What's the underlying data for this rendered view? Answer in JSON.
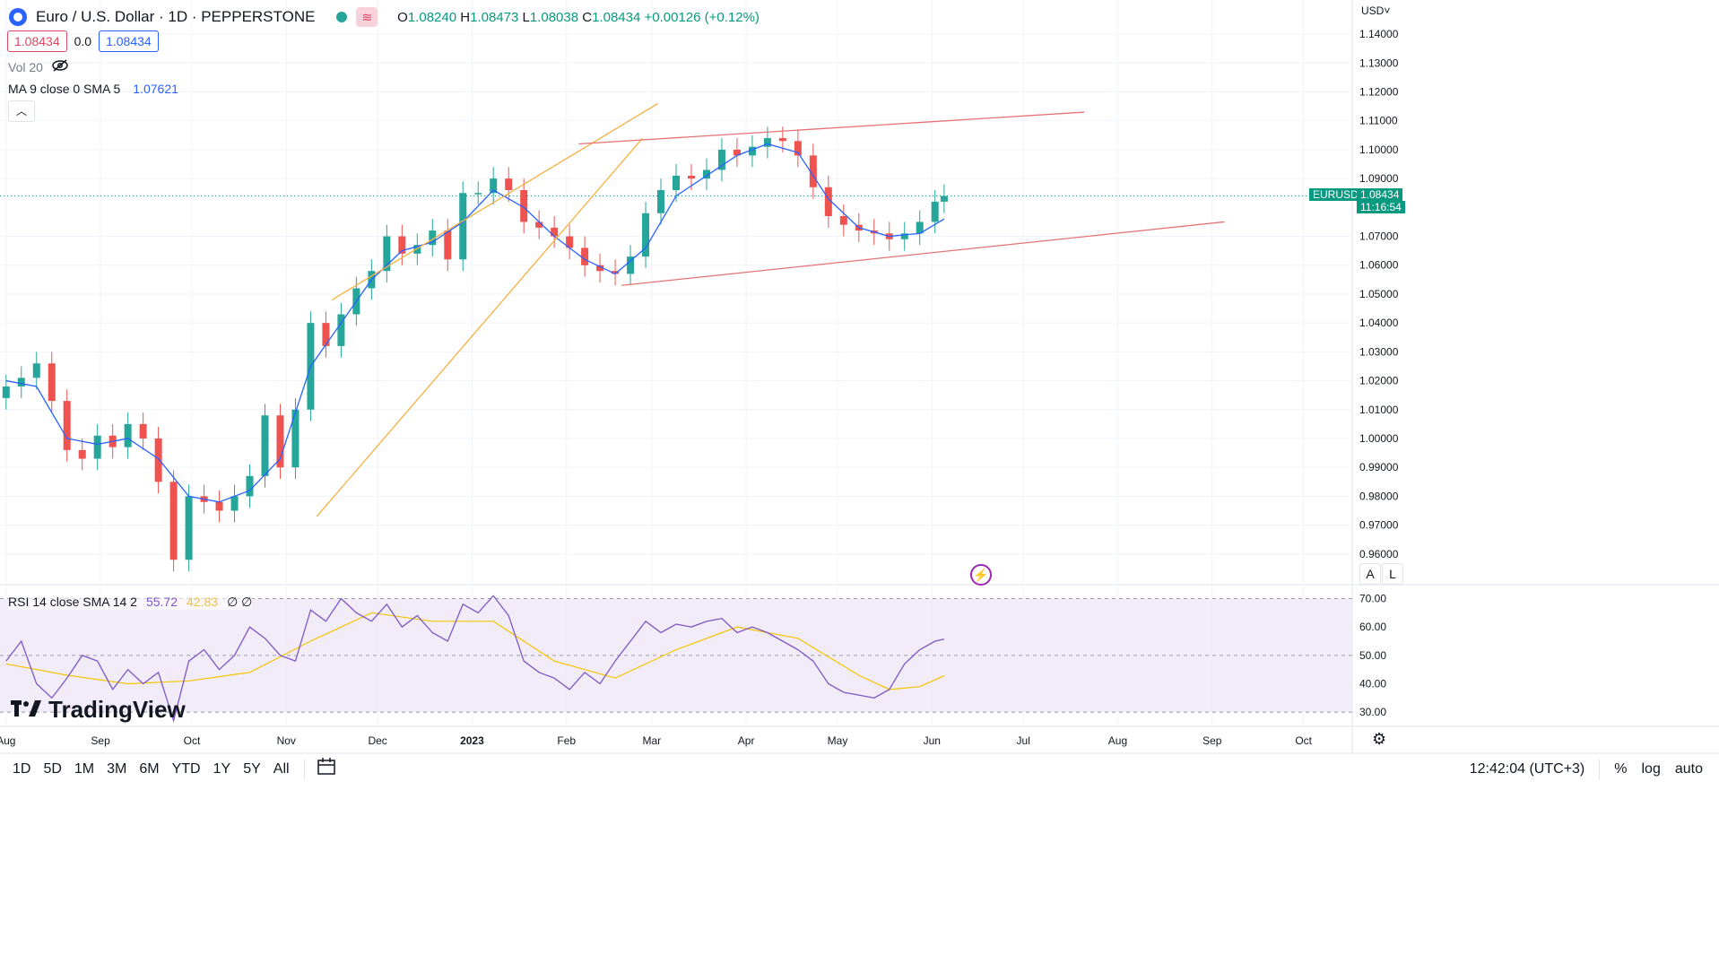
{
  "header": {
    "symbol_title": "Euro / U.S. Dollar · 1D · PEPPERSTONE",
    "ohlc": {
      "o_label": "O",
      "o": "1.08240",
      "h_label": "H",
      "h": "1.08473",
      "l_label": "L",
      "l": "1.08038",
      "c_label": "C",
      "c": "1.08434",
      "change": "+0.00126 (+0.12%)"
    },
    "sell_price": "1.08434",
    "spread": "0.0",
    "buy_price": "1.08434",
    "volume_label": "Vol 20",
    "ma_label": "MA 9 close 0 SMA 5",
    "ma_value": "1.07621",
    "currency_menu": "USD˅"
  },
  "price_tag": {
    "symbol": "EURUSD",
    "price": "1.08434",
    "countdown": "11:16:54"
  },
  "rsi": {
    "label": "RSI 14 close SMA 14 2",
    "value": "55.72",
    "sma_value": "42.83",
    "extra": "∅ ∅"
  },
  "logo": "TradingView",
  "bottom_bar": {
    "timeframes": [
      "1D",
      "5D",
      "1M",
      "3M",
      "6M",
      "YTD",
      "1Y",
      "5Y",
      "All"
    ],
    "clock": "12:42:04 (UTC+3)",
    "pct": "%",
    "log": "log",
    "auto": "auto"
  },
  "scale_buttons": {
    "a": "A",
    "l": "L"
  },
  "colors": {
    "up": "#26a69a",
    "down": "#ef5350",
    "ma": "#2962ff",
    "rsi": "#7e57c2",
    "rsi_sma": "#f5c400",
    "channel_orange": "#f5b041",
    "channel_red": "#e57373"
  },
  "chart_data": [
    {
      "type": "candlestick",
      "title": "Euro / U.S. Dollar · 1D · PEPPERSTONE",
      "ylim": [
        0.95,
        1.145
      ],
      "yticks": [
        "1.14000",
        "1.13000",
        "1.12000",
        "1.11000",
        "1.10000",
        "1.09000",
        "1.07000",
        "1.06000",
        "1.05000",
        "1.04000",
        "1.03000",
        "1.02000",
        "1.01000",
        "1.00000",
        "0.99000",
        "0.98000",
        "0.97000",
        "0.96000"
      ],
      "xticks": [
        "Aug",
        "Sep",
        "Oct",
        "Nov",
        "Dec",
        "2023",
        "Feb",
        "Mar",
        "Apr",
        "May",
        "Jun",
        "Jul",
        "Aug",
        "Sep",
        "Oct"
      ],
      "x_range_days": [
        -2,
        442
      ],
      "series": [
        {
          "name": "EURUSD",
          "x_day": [
            0,
            5,
            10,
            15,
            20,
            25,
            30,
            35,
            40,
            45,
            50,
            55,
            60,
            65,
            70,
            75,
            80,
            85,
            90,
            95,
            100,
            105,
            110,
            115,
            120,
            125,
            130,
            135,
            140,
            145,
            150,
            155,
            160,
            165,
            170,
            175,
            180,
            185,
            190,
            195,
            200,
            205,
            210,
            215,
            220,
            225,
            230,
            235,
            240,
            245,
            250,
            255,
            260,
            265,
            270,
            275,
            280,
            285,
            290,
            295,
            300,
            305,
            308
          ],
          "close": [
            1.018,
            1.021,
            1.026,
            1.013,
            0.996,
            0.993,
            1.001,
            0.997,
            1.005,
            1.0,
            0.985,
            0.958,
            0.98,
            0.978,
            0.975,
            0.98,
            0.987,
            1.008,
            0.99,
            1.01,
            1.04,
            1.032,
            1.043,
            1.052,
            1.058,
            1.07,
            1.064,
            1.067,
            1.072,
            1.062,
            1.085,
            1.085,
            1.09,
            1.086,
            1.075,
            1.073,
            1.07,
            1.066,
            1.06,
            1.058,
            1.057,
            1.063,
            1.078,
            1.086,
            1.091,
            1.09,
            1.093,
            1.1,
            1.098,
            1.101,
            1.104,
            1.103,
            1.098,
            1.087,
            1.077,
            1.074,
            1.072,
            1.071,
            1.069,
            1.071,
            1.075,
            1.082,
            1.084
          ]
        }
      ],
      "ma_series": {
        "name": "MA 9 close 0 SMA 5",
        "x_day": [
          0,
          10,
          20,
          30,
          40,
          50,
          60,
          70,
          80,
          90,
          100,
          110,
          120,
          130,
          140,
          150,
          160,
          170,
          180,
          190,
          200,
          210,
          220,
          230,
          240,
          250,
          260,
          270,
          280,
          290,
          300,
          308
        ],
        "values": [
          1.02,
          1.018,
          1.0,
          0.998,
          1.0,
          0.993,
          0.98,
          0.978,
          0.982,
          0.993,
          1.025,
          1.04,
          1.055,
          1.065,
          1.068,
          1.075,
          1.086,
          1.08,
          1.07,
          1.062,
          1.057,
          1.066,
          1.084,
          1.091,
          1.098,
          1.102,
          1.099,
          1.083,
          1.073,
          1.07,
          1.071,
          1.076
        ]
      },
      "annotations": [
        {
          "type": "channel_upper",
          "color": "orange",
          "from_day": 107,
          "from": 1.048,
          "to_day": 214,
          "to": 1.116
        },
        {
          "type": "channel_lower",
          "color": "orange",
          "from_day": 102,
          "from": 0.973,
          "to_day": 209,
          "to": 1.104
        },
        {
          "type": "channel_upper",
          "color": "red",
          "from_day": 188,
          "from": 1.102,
          "to_day": 354,
          "to": 1.113
        },
        {
          "type": "channel_lower",
          "color": "red",
          "from_day": 202,
          "from": 1.053,
          "to_day": 400,
          "to": 1.075
        }
      ]
    },
    {
      "type": "line",
      "title": "RSI 14 close SMA 14 2",
      "ylim": [
        25,
        73
      ],
      "yticks": [
        "70.00",
        "60.00",
        "50.00",
        "40.00",
        "30.00"
      ],
      "band": [
        30,
        70
      ],
      "series": [
        {
          "name": "RSI",
          "x_day": [
            0,
            5,
            10,
            15,
            20,
            25,
            30,
            35,
            40,
            45,
            50,
            55,
            60,
            65,
            70,
            75,
            80,
            85,
            90,
            95,
            100,
            105,
            110,
            115,
            120,
            125,
            130,
            135,
            140,
            145,
            150,
            155,
            160,
            165,
            170,
            175,
            180,
            185,
            190,
            195,
            200,
            205,
            210,
            215,
            220,
            225,
            230,
            235,
            240,
            245,
            250,
            255,
            260,
            265,
            270,
            275,
            280,
            285,
            290,
            295,
            300,
            305,
            308
          ],
          "values": [
            48,
            55,
            40,
            35,
            42,
            50,
            48,
            38,
            45,
            40,
            44,
            27,
            48,
            52,
            45,
            50,
            60,
            56,
            50,
            48,
            66,
            62,
            70,
            65,
            62,
            68,
            60,
            64,
            58,
            55,
            68,
            65,
            71,
            64,
            48,
            44,
            42,
            38,
            44,
            40,
            48,
            55,
            62,
            58,
            61,
            60,
            62,
            63,
            58,
            60,
            58,
            55,
            52,
            48,
            40,
            37,
            36,
            35,
            38,
            47,
            52,
            55,
            55.72
          ]
        },
        {
          "name": "SMA",
          "x_day": [
            0,
            20,
            40,
            60,
            80,
            100,
            120,
            140,
            160,
            180,
            200,
            220,
            240,
            260,
            280,
            290,
            300,
            308
          ],
          "values": [
            47,
            43,
            40,
            41,
            44,
            55,
            65,
            62,
            62,
            48,
            42,
            52,
            60,
            56,
            43,
            38,
            39,
            42.83
          ]
        }
      ]
    }
  ]
}
